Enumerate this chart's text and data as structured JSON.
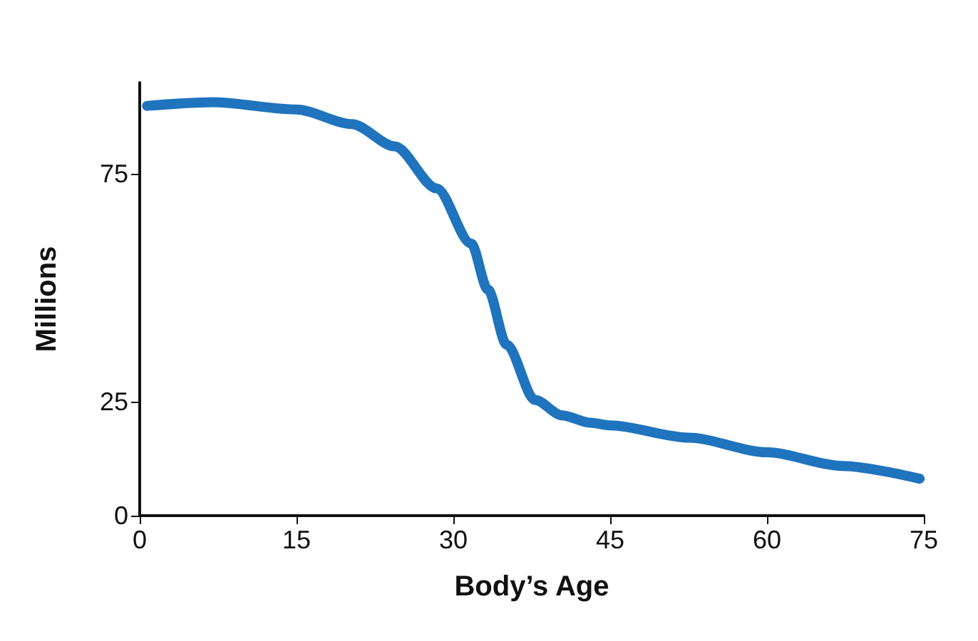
{
  "chart_data": {
    "type": "line",
    "xlabel": "Body’s Age",
    "ylabel": "Millions",
    "x": [
      0.7,
      7,
      15,
      20.3,
      24.4,
      28.4,
      31.7,
      33.3,
      35.1,
      37.8,
      40.4,
      43.1,
      45,
      52.5,
      60,
      67.2,
      74.6
    ],
    "series": [
      {
        "color": "#1f74bd",
        "values": [
          89.9,
          90.7,
          89.1,
          85.9,
          81,
          71.8,
          59.7,
          49.6,
          37.5,
          25.4,
          22,
          20.4,
          19.8,
          17.1,
          13.9,
          10.9,
          8.1
        ]
      }
    ],
    "xlim": [
      0,
      75
    ],
    "xticks": [
      0,
      15,
      30,
      45,
      60,
      75
    ],
    "ylim": [
      0,
      95
    ],
    "yticks": [
      0,
      25,
      75
    ],
    "grid": false,
    "line_style": "solid"
  }
}
